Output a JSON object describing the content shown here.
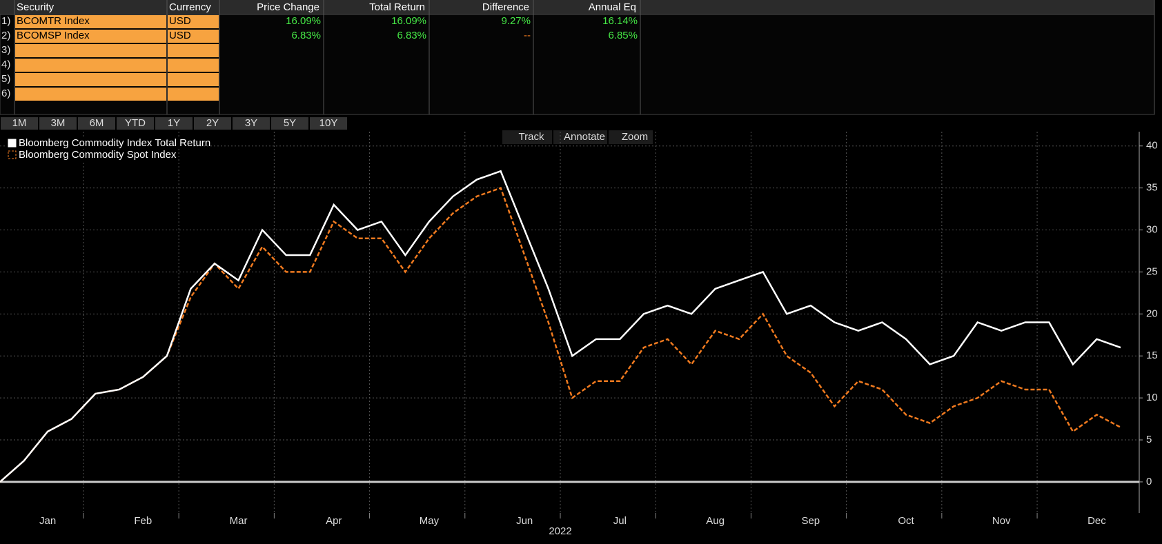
{
  "table": {
    "header": [
      "Security",
      "Currency",
      "Price Change",
      "Total Return",
      "Difference",
      "Annual Eq"
    ],
    "rows": [
      {
        "num": "1)",
        "cells": [
          "BCOMTR Index",
          "USD",
          "16.09%",
          "16.09%",
          "9.27%",
          "16.14%"
        ]
      },
      {
        "num": "2)",
        "cells": [
          "BCOMSP Index",
          "USD",
          "6.83%",
          "6.83%",
          "--",
          "6.85%"
        ]
      },
      {
        "num": "3)"
      },
      {
        "num": "4)"
      },
      {
        "num": "5)"
      },
      {
        "num": "6)"
      }
    ]
  },
  "buttons": [
    "1M",
    "3M",
    "6M",
    "YTD",
    "1Y",
    "2Y",
    "3Y",
    "5Y",
    "10Y"
  ],
  "toolbar": [
    "Track",
    "Annotate",
    "Zoom"
  ],
  "chart_data": {
    "type": "line",
    "xlabel": "2022",
    "categories": [
      null,
      null,
      "Jan",
      null,
      null,
      null,
      "Feb",
      null,
      null,
      null,
      "Mar",
      null,
      null,
      null,
      "Apr",
      null,
      null,
      null,
      "May",
      null,
      null,
      null,
      "Jun",
      null,
      null,
      null,
      "Jul",
      null,
      null,
      null,
      "Aug",
      null,
      null,
      null,
      "Sep",
      null,
      null,
      null,
      "Oct",
      null,
      null,
      null,
      "Nov",
      null,
      null,
      null,
      "Dec",
      null
    ],
    "series": [
      {
        "name": "Bloomberg Commodity Index Total Return",
        "color": "#ffffff",
        "dash": false,
        "values": [
          0,
          2.5,
          6,
          7.5,
          10.5,
          11,
          12.5,
          15,
          23,
          26,
          24,
          30,
          27,
          27,
          33,
          30,
          31,
          27,
          31,
          34,
          36,
          37,
          30,
          23,
          15,
          17,
          17,
          20,
          21,
          20,
          23,
          24,
          25,
          20,
          21,
          19,
          18,
          19,
          17,
          14,
          15,
          19,
          18,
          19,
          19,
          14,
          17,
          16
        ]
      },
      {
        "name": "Bloomberg Commodity Spot Index",
        "color": "#f07a1f",
        "dash": true,
        "values": [
          0,
          2.5,
          6,
          7.5,
          10.5,
          11,
          12.5,
          15,
          22,
          26,
          23,
          28,
          25,
          25,
          31,
          29,
          29,
          25,
          29,
          32,
          34,
          35,
          27,
          19,
          10,
          12,
          12,
          16,
          17,
          14,
          18,
          17,
          20,
          15,
          13,
          9,
          12,
          11,
          8,
          7,
          9,
          10,
          12,
          11,
          11,
          6,
          8,
          6.5
        ]
      }
    ],
    "ylim": [
      -3.7,
      41.7
    ],
    "yticks": [
      0,
      5,
      10,
      15,
      20,
      25,
      30,
      35,
      40
    ],
    "grid": true
  }
}
